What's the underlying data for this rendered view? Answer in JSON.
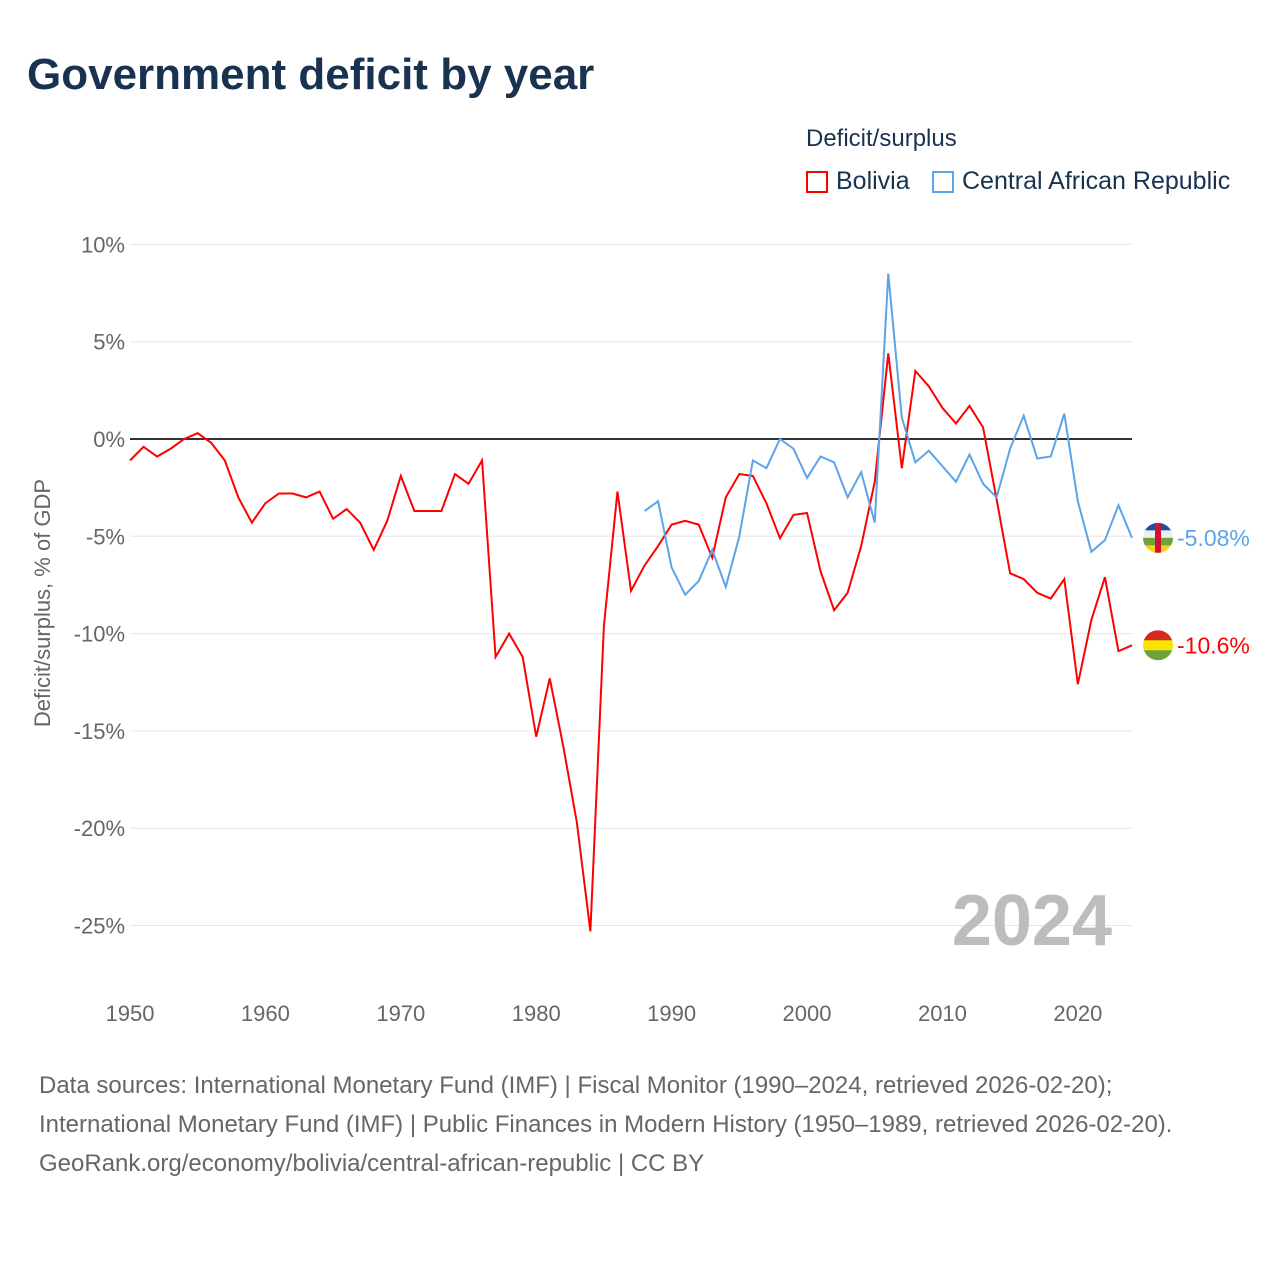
{
  "title": "Government deficit by year",
  "legend": {
    "title": "Deficit/surplus",
    "items": [
      {
        "name": "Bolivia",
        "color": "#ff0000"
      },
      {
        "name": "Central African Republic",
        "color": "#5ba4ea"
      }
    ]
  },
  "year_label": "2024",
  "sources": {
    "line1": "Data sources: International Monetary Fund (IMF) | Fiscal Monitor (1990–2024, retrieved 2026-02-20); International Monetary Fund (IMF) | Public Finances in Modern History (1950–1989, retrieved 2026-02-20).",
    "line2": "GeoRank.org/economy/bolivia/central-african-republic | CC BY"
  },
  "chart_data": {
    "type": "line",
    "title": "Government deficit by year",
    "xlabel": "",
    "ylabel": "Deficit/surplus, % of GDP",
    "xlim": [
      1950,
      2024
    ],
    "ylim": [
      -27,
      11
    ],
    "yticks": [
      10,
      5,
      0,
      -5,
      -10,
      -15,
      -20,
      -25
    ],
    "ytick_labels": [
      "10%",
      "5%",
      "0%",
      "-5%",
      "-10%",
      "-15%",
      "-20%",
      "-25%"
    ],
    "xticks": [
      1950,
      1960,
      1970,
      1980,
      1990,
      2000,
      2010,
      2020
    ],
    "xtick_labels": [
      "1950",
      "1960",
      "1970",
      "1980",
      "1990",
      "2000",
      "2010",
      "2020"
    ],
    "grid": true,
    "legend_position": "top-right",
    "series": [
      {
        "name": "Bolivia",
        "color": "#ff0000",
        "end_label": "-10.6%",
        "start": 1950,
        "values": [
          -1.1,
          -0.4,
          -0.9,
          -0.5,
          0,
          0.3,
          -0.2,
          -1.1,
          -3.0,
          -4.3,
          -3.3,
          -2.8,
          -2.8,
          -3.0,
          -2.7,
          -4.1,
          -3.6,
          -4.3,
          -5.7,
          -4.2,
          -1.9,
          -3.7,
          -3.7,
          -3.7,
          -1.8,
          -2.3,
          -1.1,
          -11.2,
          -10.0,
          -11.2,
          -15.3,
          -12.3,
          -15.8,
          -19.7,
          -25.3,
          -9.6,
          -2.7,
          -7.8,
          -6.5,
          -5.5,
          -4.4,
          -4.2,
          -4.4,
          -6.1,
          -3.0,
          -1.8,
          -1.9,
          -3.3,
          -5.1,
          -3.9,
          -3.8,
          -6.8,
          -8.8,
          -7.9,
          -5.5,
          -2.2,
          4.4,
          -1.5,
          3.5,
          2.7,
          1.6,
          0.8,
          1.7,
          0.6,
          -3.1,
          -6.9,
          -7.2,
          -7.9,
          -8.2,
          -7.2,
          -12.6,
          -9.3,
          -7.1,
          -10.9,
          -10.6
        ]
      },
      {
        "name": "Central African Republic",
        "color": "#5ba4ea",
        "end_label": "-5.08%",
        "start": 1988,
        "values": [
          -3.7,
          -3.2,
          -6.6,
          -8.0,
          -7.3,
          -5.7,
          -7.6,
          -5.0,
          -1.1,
          -1.5,
          0,
          -0.5,
          -2.0,
          -0.9,
          -1.2,
          -3.0,
          -1.7,
          -4.3,
          8.5,
          1.1,
          -1.2,
          -0.6,
          -1.4,
          -2.2,
          -0.8,
          -2.3,
          -3.0,
          -0.5,
          1.2,
          -1.0,
          -0.9,
          1.3,
          -3.2,
          -5.8,
          -5.2,
          -3.4,
          -5.08
        ]
      }
    ]
  }
}
